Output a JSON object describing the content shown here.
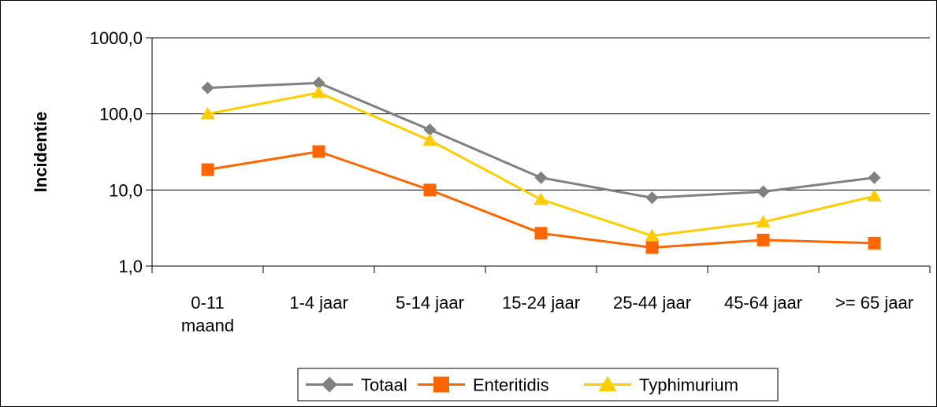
{
  "chart_data": {
    "type": "line",
    "title": "",
    "xlabel": "",
    "ylabel": "Incidentie",
    "yscale": "log",
    "ylim": [
      1,
      1000
    ],
    "yticks": [
      "1000,0",
      "100,0",
      "10,0",
      "1,0"
    ],
    "categories": [
      [
        "0-11",
        "maand"
      ],
      [
        "1-4 jaar"
      ],
      [
        "5-14 jaar"
      ],
      [
        "15-24 jaar"
      ],
      [
        "25-44 jaar"
      ],
      [
        "45-64 jaar"
      ],
      [
        ">= 65 jaar"
      ]
    ],
    "grid": true,
    "legend_position": "bottom",
    "series": [
      {
        "name": "Totaal",
        "color": "#808080",
        "marker": "diamond",
        "values": [
          220,
          255,
          62,
          14.5,
          7.9,
          9.5,
          14.5
        ]
      },
      {
        "name": "Enteritidis",
        "color": "#FF6600",
        "marker": "square",
        "values": [
          18.5,
          32,
          10,
          2.7,
          1.75,
          2.2,
          2.0
        ]
      },
      {
        "name": "Typhimurium",
        "color": "#FFCC00",
        "marker": "triangle",
        "values": [
          100,
          190,
          45,
          7.5,
          2.5,
          3.8,
          8.3
        ]
      }
    ]
  }
}
